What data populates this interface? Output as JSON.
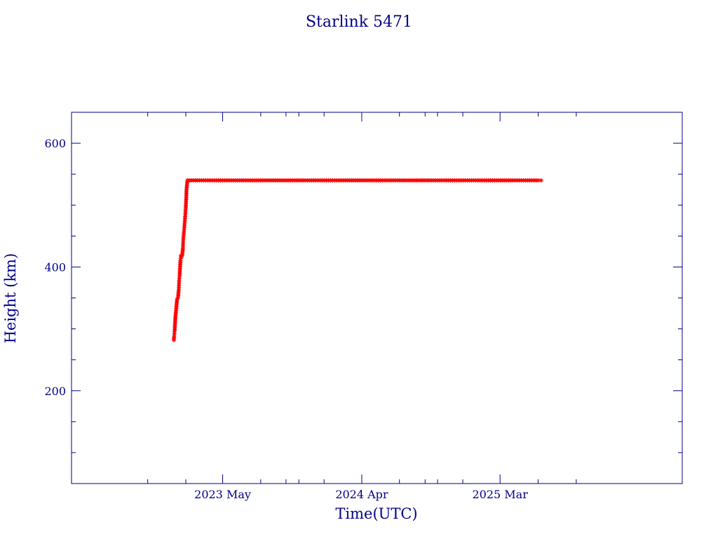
{
  "chart_data": {
    "type": "scatter",
    "title": "Starlink 5471",
    "xlabel": "Time(UTC)",
    "ylabel": "Height (km)",
    "x_unit": "date",
    "xlim": [
      "2022-05-01",
      "2026-05-15"
    ],
    "ylim": [
      50,
      650
    ],
    "x_ticks": [
      {
        "date": "2023-05-01",
        "label": "2023 May"
      },
      {
        "date": "2024-04-01",
        "label": "2024 Apr"
      },
      {
        "date": "2025-03-01",
        "label": "2025 Mar"
      }
    ],
    "y_ticks": [
      200,
      400,
      600
    ],
    "grid": false,
    "colors": {
      "axes": "#00008b",
      "points": "#ff0000",
      "line": "#00e5e5"
    },
    "series": [
      {
        "points": [
          [
            "2023-01-03",
            282
          ],
          [
            "2023-01-04",
            288
          ],
          [
            "2023-01-05",
            296
          ],
          [
            "2023-01-06",
            308
          ],
          [
            "2023-01-07",
            320
          ],
          [
            "2023-01-09",
            333
          ],
          [
            "2023-01-10",
            342
          ],
          [
            "2023-01-11",
            348
          ],
          [
            "2023-01-13",
            350
          ],
          [
            "2023-01-15",
            363
          ],
          [
            "2023-01-16",
            378
          ],
          [
            "2023-01-17",
            386
          ],
          [
            "2023-01-18",
            398
          ],
          [
            "2023-01-19",
            410
          ],
          [
            "2023-01-20",
            418
          ],
          [
            "2023-01-21",
            416
          ],
          [
            "2023-01-23",
            418
          ],
          [
            "2023-01-25",
            430
          ],
          [
            "2023-01-26",
            445
          ],
          [
            "2023-01-28",
            460
          ],
          [
            "2023-01-30",
            478
          ],
          [
            "2023-02-01",
            496
          ],
          [
            "2023-02-02",
            512
          ],
          [
            "2023-02-03",
            528
          ],
          [
            "2023-02-05",
            540
          ],
          [
            "2023-03-01",
            540
          ],
          [
            "2023-05-01",
            540
          ],
          [
            "2023-08-01",
            540
          ],
          [
            "2023-11-01",
            540
          ],
          [
            "2024-02-01",
            540
          ],
          [
            "2024-05-01",
            540
          ],
          [
            "2024-08-01",
            540
          ],
          [
            "2024-11-01",
            540
          ],
          [
            "2025-02-01",
            540
          ],
          [
            "2025-04-01",
            540
          ],
          [
            "2025-06-01",
            540
          ],
          [
            "2025-06-08",
            540
          ]
        ]
      }
    ]
  }
}
